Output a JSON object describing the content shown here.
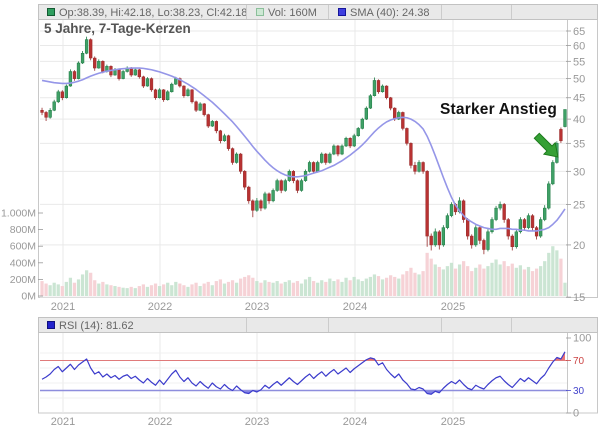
{
  "window": {
    "title": "5 Jahre, 7-Tage-Kerzen Chart"
  },
  "legend": {
    "ohlc": "Op:38.39, Hi:42.18, Lo:38.23, Cl:42.18",
    "vol": "Vol: 160M",
    "sma": "SMA (40): 24.38"
  },
  "title": "5 Jahre, 7-Tage-Kerzen",
  "annotation": "Starker Anstieg",
  "rsi_legend": "RSI (14): 81.62",
  "colors": {
    "candle_up": "#3fa066",
    "candle_up_border": "#1e7a44",
    "candle_down": "#b83232",
    "candle_down_border": "#962a2a",
    "volume_up": "#c8e4d1",
    "volume_down": "#f6d0d4",
    "sma": "#9596e8",
    "rsi_line": "#3c3ccc",
    "rsi_over_fill": "#e85c5c",
    "rsi_under_fill": "#6a6ae0",
    "overbought_line": "#e07a7a",
    "oversold_line": "#8e8edd",
    "grid": "#e9e9e9",
    "axis_text": "#999999",
    "axis_line": "#c8c8c8",
    "tick_red": "#cc4444",
    "tick_blue": "#4444cc",
    "arrow": "#35a035",
    "arrow_border": "#1c7a1c"
  },
  "chart_data": [
    {
      "type": "candlestick",
      "title": "5 Jahre, 7-Tage-Kerzen",
      "period": "5 Jahre",
      "candle_interval": "7-Tage-Kerzen",
      "price_axis": {
        "scale": "log",
        "side": "right",
        "ticks": [
          65,
          60,
          55,
          50,
          45,
          40,
          35,
          30,
          25,
          20,
          15
        ],
        "range": [
          15,
          65
        ]
      },
      "volume_axis": {
        "side": "left",
        "unit": "M",
        "ticks": [
          {
            "v": 1000,
            "label": "1.000M"
          },
          {
            "v": 800,
            "label": "800M"
          },
          {
            "v": 600,
            "label": "600M"
          },
          {
            "v": 400,
            "label": "400M"
          },
          {
            "v": 200,
            "label": "200M"
          },
          {
            "v": 0,
            "label": "0M"
          }
        ]
      },
      "x_axis": {
        "years": [
          "2021",
          "2022",
          "2023",
          "2024",
          "2025"
        ]
      },
      "last_candle": {
        "open": 38.39,
        "high": 42.18,
        "low": 38.23,
        "close": 42.18,
        "volume": "160M",
        "sma40": 24.38
      },
      "candles": [
        [
          42.0,
          42.6,
          40.9,
          41.5
        ],
        [
          41.5,
          41.8,
          39.6,
          40.4
        ],
        [
          40.4,
          42.5,
          40.1,
          42.0
        ],
        [
          42.0,
          44.5,
          41.8,
          44.0
        ],
        [
          44.0,
          47.0,
          43.7,
          46.5
        ],
        [
          46.5,
          46.9,
          44.4,
          45.0
        ],
        [
          45.0,
          48.4,
          44.8,
          48.0
        ],
        [
          48.0,
          52.6,
          47.8,
          52.0
        ],
        [
          52.0,
          52.4,
          49.4,
          50.0
        ],
        [
          50.0,
          55.0,
          49.8,
          54.5
        ],
        [
          54.5,
          58.2,
          54.2,
          57.5
        ],
        [
          57.5,
          63.0,
          57.2,
          62.0
        ],
        [
          62.0,
          62.4,
          55.3,
          56.0
        ],
        [
          56.0,
          56.5,
          52.2,
          53.0
        ],
        [
          53.0,
          55.6,
          52.8,
          55.0
        ],
        [
          55.0,
          55.3,
          51.5,
          52.0
        ],
        [
          52.0,
          54.0,
          51.7,
          53.5
        ],
        [
          53.5,
          53.8,
          50.4,
          51.0
        ],
        [
          51.0,
          53.0,
          50.8,
          52.5
        ],
        [
          52.5,
          52.8,
          49.5,
          50.0
        ],
        [
          50.0,
          52.4,
          49.8,
          52.0
        ],
        [
          52.0,
          53.5,
          51.7,
          53.0
        ],
        [
          53.0,
          53.3,
          50.5,
          51.0
        ],
        [
          51.0,
          53.0,
          50.8,
          52.5
        ],
        [
          52.5,
          52.8,
          50.0,
          50.5
        ],
        [
          50.5,
          50.8,
          47.5,
          48.0
        ],
        [
          48.0,
          50.4,
          47.8,
          50.0
        ],
        [
          50.0,
          50.3,
          46.5,
          47.0
        ],
        [
          47.0,
          47.3,
          44.5,
          45.0
        ],
        [
          45.0,
          47.4,
          44.8,
          47.0
        ],
        [
          47.0,
          47.2,
          44.0,
          44.5
        ],
        [
          44.5,
          46.9,
          44.3,
          46.5
        ],
        [
          46.5,
          48.9,
          46.3,
          48.5
        ],
        [
          48.5,
          50.5,
          48.3,
          50.0
        ],
        [
          50.0,
          50.3,
          47.6,
          48.0
        ],
        [
          48.0,
          48.2,
          45.0,
          45.5
        ],
        [
          45.5,
          47.4,
          45.3,
          47.0
        ],
        [
          47.0,
          47.2,
          43.6,
          44.0
        ],
        [
          44.0,
          44.3,
          41.6,
          42.0
        ],
        [
          42.0,
          43.9,
          41.8,
          43.5
        ],
        [
          43.5,
          43.7,
          40.6,
          41.0
        ],
        [
          41.0,
          41.2,
          38.1,
          38.5
        ],
        [
          38.5,
          39.8,
          38.3,
          39.5
        ],
        [
          39.5,
          39.7,
          37.0,
          37.5
        ],
        [
          37.5,
          37.7,
          35.0,
          35.5
        ],
        [
          35.5,
          36.9,
          35.3,
          36.5
        ],
        [
          36.5,
          36.7,
          33.6,
          34.0
        ],
        [
          34.0,
          34.2,
          31.1,
          31.5
        ],
        [
          31.5,
          33.3,
          31.3,
          33.0
        ],
        [
          33.0,
          33.2,
          29.6,
          30.0
        ],
        [
          30.0,
          30.2,
          27.1,
          27.5
        ],
        [
          27.5,
          27.7,
          25.1,
          25.5
        ],
        [
          25.5,
          25.7,
          23.3,
          24.2
        ],
        [
          24.2,
          25.9,
          24.0,
          25.5
        ],
        [
          25.5,
          25.7,
          24.1,
          24.5
        ],
        [
          24.5,
          26.8,
          24.3,
          26.5
        ],
        [
          26.5,
          26.7,
          25.1,
          25.5
        ],
        [
          25.5,
          27.3,
          25.3,
          27.0
        ],
        [
          27.0,
          28.8,
          26.8,
          28.5
        ],
        [
          28.5,
          28.7,
          26.6,
          27.0
        ],
        [
          27.0,
          28.8,
          26.8,
          28.5
        ],
        [
          28.5,
          30.3,
          28.3,
          30.0
        ],
        [
          30.0,
          30.2,
          28.1,
          28.5
        ],
        [
          28.5,
          28.7,
          26.6,
          27.0
        ],
        [
          27.0,
          28.8,
          26.8,
          28.5
        ],
        [
          28.5,
          30.3,
          28.3,
          30.0
        ],
        [
          30.0,
          31.8,
          29.8,
          31.5
        ],
        [
          31.5,
          31.7,
          29.6,
          30.0
        ],
        [
          30.0,
          31.8,
          29.8,
          31.5
        ],
        [
          31.5,
          33.3,
          31.3,
          33.0
        ],
        [
          33.0,
          33.2,
          31.1,
          31.5
        ],
        [
          31.5,
          33.3,
          31.3,
          33.0
        ],
        [
          33.0,
          34.8,
          32.8,
          34.5
        ],
        [
          34.5,
          34.7,
          32.6,
          33.0
        ],
        [
          33.0,
          34.8,
          32.8,
          34.5
        ],
        [
          34.5,
          36.3,
          34.3,
          36.0
        ],
        [
          36.0,
          36.2,
          34.1,
          34.5
        ],
        [
          34.5,
          36.9,
          34.3,
          36.5
        ],
        [
          36.5,
          38.3,
          36.3,
          38.0
        ],
        [
          38.0,
          40.3,
          37.8,
          40.0
        ],
        [
          40.0,
          42.9,
          39.8,
          42.5
        ],
        [
          42.5,
          45.9,
          42.3,
          45.5
        ],
        [
          45.5,
          50.3,
          45.3,
          49.5
        ],
        [
          49.5,
          49.8,
          46.0,
          46.5
        ],
        [
          46.5,
          48.4,
          46.3,
          48.0
        ],
        [
          48.0,
          48.2,
          44.6,
          45.0
        ],
        [
          45.0,
          45.2,
          42.0,
          42.5
        ],
        [
          42.5,
          42.7,
          39.6,
          40.0
        ],
        [
          40.0,
          41.9,
          39.8,
          41.5
        ],
        [
          41.5,
          41.7,
          37.6,
          38.0
        ],
        [
          38.0,
          38.2,
          34.6,
          35.0
        ],
        [
          35.0,
          35.2,
          30.5,
          31.0
        ],
        [
          31.0,
          31.6,
          29.5,
          30.0
        ],
        [
          30.0,
          31.9,
          29.8,
          31.5
        ],
        [
          31.5,
          31.7,
          29.6,
          30.0
        ],
        [
          30.0,
          30.2,
          19.8,
          21.0
        ],
        [
          21.0,
          21.3,
          19.4,
          20.0
        ],
        [
          20.0,
          21.9,
          19.8,
          21.5
        ],
        [
          21.5,
          21.7,
          19.5,
          20.0
        ],
        [
          20.0,
          22.3,
          19.8,
          22.0
        ],
        [
          22.0,
          23.8,
          21.8,
          23.5
        ],
        [
          23.5,
          25.3,
          23.3,
          25.0
        ],
        [
          25.0,
          25.2,
          23.6,
          24.0
        ],
        [
          24.0,
          26.0,
          23.8,
          25.5
        ],
        [
          25.5,
          25.7,
          22.6,
          23.0
        ],
        [
          23.0,
          23.2,
          20.6,
          21.0
        ],
        [
          21.0,
          21.2,
          19.6,
          20.0
        ],
        [
          20.0,
          22.3,
          19.8,
          22.0
        ],
        [
          22.0,
          22.2,
          20.1,
          20.5
        ],
        [
          20.5,
          20.7,
          19.0,
          19.5
        ],
        [
          19.5,
          21.8,
          19.3,
          21.5
        ],
        [
          21.5,
          23.3,
          21.3,
          23.0
        ],
        [
          23.0,
          24.8,
          22.8,
          24.5
        ],
        [
          24.5,
          25.4,
          24.2,
          25.0
        ],
        [
          25.0,
          25.2,
          22.6,
          23.0
        ],
        [
          23.0,
          23.2,
          20.6,
          21.0
        ],
        [
          21.0,
          21.2,
          19.4,
          19.8
        ],
        [
          19.8,
          21.8,
          19.6,
          21.5
        ],
        [
          21.5,
          23.3,
          21.3,
          23.0
        ],
        [
          23.0,
          23.2,
          21.6,
          22.0
        ],
        [
          22.0,
          23.8,
          21.8,
          23.5
        ],
        [
          23.5,
          23.7,
          21.6,
          22.0
        ],
        [
          22.0,
          22.2,
          20.6,
          21.0
        ],
        [
          21.0,
          23.3,
          20.8,
          23.0
        ],
        [
          23.0,
          24.9,
          22.8,
          24.5
        ],
        [
          24.5,
          28.4,
          24.3,
          28.0
        ],
        [
          28.0,
          31.9,
          27.8,
          31.5
        ],
        [
          31.5,
          35.4,
          31.3,
          35.0
        ],
        [
          37.8,
          38.2,
          35.1,
          35.5
        ],
        [
          38.39,
          42.18,
          38.23,
          42.18
        ]
      ],
      "volumes_M": [
        180,
        150,
        130,
        160,
        140,
        120,
        170,
        220,
        160,
        200,
        260,
        310,
        280,
        190,
        150,
        170,
        140,
        130,
        120,
        110,
        100,
        95,
        110,
        95,
        120,
        140,
        110,
        130,
        150,
        120,
        140,
        160,
        130,
        170,
        150,
        130,
        110,
        140,
        160,
        120,
        150,
        170,
        130,
        180,
        200,
        150,
        170,
        190,
        160,
        210,
        230,
        250,
        220,
        180,
        160,
        190,
        170,
        160,
        180,
        150,
        170,
        190,
        160,
        180,
        150,
        200,
        230,
        180,
        160,
        190,
        170,
        210,
        180,
        200,
        170,
        220,
        190,
        230,
        200,
        180,
        210,
        230,
        260,
        240,
        200,
        220,
        250,
        230,
        210,
        260,
        300,
        340,
        280,
        260,
        300,
        520,
        450,
        380,
        350,
        320,
        360,
        400,
        330,
        380,
        420,
        360,
        300,
        340,
        380,
        330,
        360,
        400,
        440,
        380,
        420,
        360,
        390,
        340,
        370,
        320,
        350,
        300,
        330,
        360,
        420,
        520,
        600,
        550,
        450,
        160
      ],
      "sma40": [
        49.5,
        49.3,
        49.1,
        48.9,
        48.8,
        48.7,
        48.7,
        48.8,
        49.0,
        49.3,
        49.7,
        50.2,
        50.7,
        51.1,
        51.5,
        51.8,
        52.1,
        52.3,
        52.5,
        52.7,
        52.8,
        52.9,
        53.0,
        53.0,
        53.0,
        52.9,
        52.7,
        52.5,
        52.2,
        51.9,
        51.5,
        51.1,
        50.7,
        50.2,
        49.7,
        49.1,
        48.5,
        47.8,
        47.1,
        46.3,
        45.5,
        44.7,
        43.9,
        43.0,
        42.1,
        41.2,
        40.3,
        39.4,
        38.4,
        37.4,
        36.4,
        35.4,
        34.4,
        33.5,
        32.7,
        31.9,
        31.2,
        30.6,
        30.1,
        29.7,
        29.4,
        29.2,
        29.1,
        29.1,
        29.2,
        29.3,
        29.5,
        29.7,
        29.9,
        30.1,
        30.4,
        30.7,
        31.0,
        31.4,
        31.8,
        32.3,
        32.8,
        33.4,
        34.0,
        34.7,
        35.5,
        36.4,
        37.3,
        38.1,
        38.8,
        39.4,
        39.8,
        40.1,
        40.3,
        40.4,
        40.3,
        40.0,
        39.5,
        38.8,
        37.9,
        36.4,
        34.6,
        32.7,
        30.8,
        29.0,
        27.4,
        26.0,
        24.9,
        24.1,
        23.5,
        23.0,
        22.7,
        22.4,
        22.2,
        22.0,
        21.9,
        21.8,
        21.8,
        21.9,
        21.9,
        21.9,
        21.8,
        21.8,
        21.7,
        21.7,
        21.6,
        21.6,
        21.6,
        21.7,
        21.8,
        22.0,
        22.4,
        22.9,
        23.6,
        24.38
      ]
    },
    {
      "type": "line",
      "name": "RSI (14)",
      "last_value": 81.62,
      "overbought": 70,
      "oversold": 30,
      "y_axis": {
        "range": [
          0,
          100
        ],
        "ticks": [
          {
            "v": 100,
            "label": "100",
            "color": "gray"
          },
          {
            "v": 70,
            "label": "70",
            "color": "red"
          },
          {
            "v": 30,
            "label": "30",
            "color": "blue"
          },
          {
            "v": 0,
            "label": "0",
            "color": "gray"
          }
        ]
      },
      "x_axis": {
        "years": [
          "2021",
          "2022",
          "2023",
          "2024",
          "2025"
        ]
      },
      "values": [
        45,
        48,
        52,
        58,
        62,
        55,
        60,
        65,
        58,
        64,
        68,
        72,
        60,
        52,
        55,
        48,
        52,
        47,
        50,
        45,
        49,
        51,
        46,
        49,
        44,
        40,
        46,
        41,
        37,
        44,
        38,
        45,
        52,
        57,
        48,
        42,
        47,
        40,
        36,
        42,
        37,
        33,
        40,
        35,
        32,
        38,
        33,
        30,
        36,
        31,
        27,
        26,
        30,
        28,
        31,
        37,
        33,
        38,
        42,
        37,
        42,
        47,
        42,
        38,
        43,
        48,
        52,
        46,
        51,
        55,
        49,
        54,
        58,
        52,
        56,
        60,
        54,
        59,
        63,
        67,
        71,
        73.5,
        72,
        64,
        67,
        58,
        52,
        47,
        52,
        44,
        39,
        32,
        31,
        34,
        32,
        26,
        25,
        29,
        27,
        33,
        38,
        42,
        39,
        44,
        38,
        33,
        31,
        37,
        34,
        32,
        38,
        43,
        47,
        49,
        43,
        38,
        34,
        40,
        46,
        42,
        47,
        43,
        39,
        46,
        51,
        60,
        68,
        74,
        72,
        81.62
      ]
    }
  ]
}
